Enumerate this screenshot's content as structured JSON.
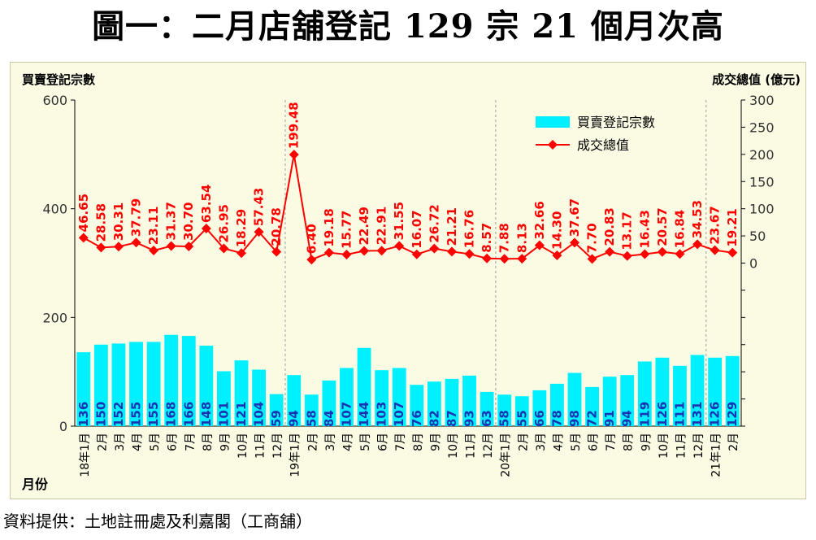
{
  "page_title": "圖一：二月店舖登記 129 宗  21 個月次高",
  "source_note": "資料提供：土地註冊處及利嘉閣（工商舖）",
  "colors": {
    "bar": "#00f0ff",
    "line": "#ff0000",
    "bar_label": "#1a33b3",
    "background": "#fbfbe4"
  },
  "chart_data": {
    "type": "bar",
    "title": "",
    "xlabel": "月份",
    "ylabel": "買賣登記宗數",
    "y2label": "成交總值 (億元)",
    "ylim": [
      0,
      600
    ],
    "yticks": [
      "0",
      "200",
      "400",
      "600"
    ],
    "y2lim": [
      -300,
      300
    ],
    "y2ticks": [
      "0",
      "50",
      "100",
      "150",
      "200",
      "250",
      "300"
    ],
    "categories": [
      "18年1月",
      "2月",
      "3月",
      "4月",
      "5月",
      "6月",
      "7月",
      "8月",
      "9月",
      "10月",
      "11月",
      "12月",
      "19年1月",
      "2月",
      "3月",
      "4月",
      "5月",
      "6月",
      "7月",
      "8月",
      "9月",
      "10月",
      "11月",
      "12月",
      "20年1月",
      "2月",
      "3月",
      "4月",
      "5月",
      "6月",
      "7月",
      "8月",
      "9月",
      "10月",
      "11月",
      "12月",
      "21年1月",
      "2月"
    ],
    "series": [
      {
        "name": "買賣登記宗數",
        "type": "bar",
        "axis": "left",
        "values": [
          136,
          150,
          152,
          155,
          155,
          168,
          166,
          148,
          101,
          121,
          104,
          59,
          94,
          58,
          84,
          107,
          144,
          103,
          107,
          76,
          82,
          87,
          93,
          63,
          58,
          55,
          66,
          78,
          98,
          72,
          91,
          94,
          119,
          126,
          111,
          131,
          126,
          129
        ],
        "labels": [
          "136",
          "150",
          "152",
          "155",
          "155",
          "168",
          "166",
          "148",
          "101",
          "121",
          "104",
          "59",
          "94",
          "58",
          "84",
          "107",
          "144",
          "103",
          "107",
          "76",
          "82",
          "87",
          "93",
          "63",
          "58",
          "55",
          "66",
          "78",
          "98",
          "72",
          "91",
          "94",
          "119",
          "126",
          "111",
          "131",
          "126",
          "129"
        ]
      },
      {
        "name": "成交總值",
        "type": "line",
        "axis": "right",
        "values": [
          46.65,
          28.58,
          30.31,
          37.79,
          23.11,
          31.37,
          30.7,
          63.54,
          26.95,
          18.29,
          57.43,
          20.78,
          199.48,
          6.4,
          19.18,
          15.77,
          22.49,
          22.91,
          31.55,
          16.07,
          26.72,
          21.21,
          16.76,
          8.57,
          7.88,
          8.13,
          32.66,
          14.3,
          37.67,
          7.7,
          20.83,
          13.17,
          16.43,
          20.57,
          16.84,
          34.53,
          23.67,
          19.21
        ],
        "labels": [
          "46.65",
          "28.58",
          "30.31",
          "37.79",
          "23.11",
          "31.37",
          "30.70",
          "63.54",
          "26.95",
          "18.29",
          "57.43",
          "20.78",
          "199.48",
          "6.40",
          "19.18",
          "15.77",
          "22.49",
          "22.91",
          "31.55",
          "16.07",
          "26.72",
          "21.21",
          "16.76",
          "8.57",
          "7.88",
          "8.13",
          "32.66",
          "14.30",
          "37.67",
          "7.70",
          "20.83",
          "13.17",
          "16.43",
          "20.57",
          "16.84",
          "34.53",
          "23.67",
          "19.21"
        ]
      }
    ],
    "legend": {
      "position": "top-right"
    },
    "grid": false
  }
}
